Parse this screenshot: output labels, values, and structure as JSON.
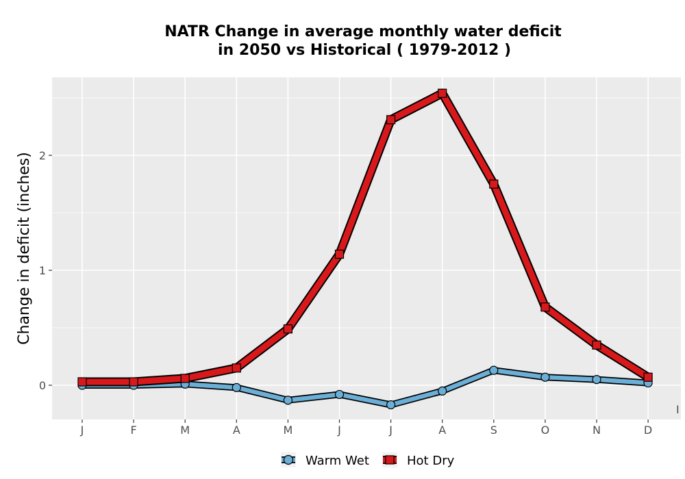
{
  "chart_data": {
    "type": "line",
    "title": "NATR  Change in average monthly water deficit",
    "subtitle": "in 2050 vs Historical ( 1979-2012 )",
    "xlabel": "",
    "ylabel": "Change in deficit (inches)",
    "categories": [
      "J",
      "F",
      "M",
      "A",
      "M",
      "J",
      "J",
      "A",
      "S",
      "O",
      "N",
      "D"
    ],
    "yticks": [
      0,
      1,
      2
    ],
    "ylim": [
      -0.3,
      2.65
    ],
    "grid": true,
    "legend_position": "bottom",
    "stray_label": "I",
    "series": [
      {
        "name": "Warm Wet",
        "marker": "circle",
        "fill_color": "#6baed6",
        "values": [
          0.0,
          0.0,
          0.01,
          -0.02,
          -0.13,
          -0.08,
          -0.17,
          -0.05,
          0.13,
          0.07,
          0.05,
          0.02
        ]
      },
      {
        "name": "Hot Dry",
        "marker": "square",
        "fill_color": "#d7191c",
        "values": [
          0.03,
          0.03,
          0.06,
          0.15,
          0.49,
          1.14,
          2.31,
          2.54,
          1.75,
          0.68,
          0.35,
          0.07
        ]
      }
    ],
    "colors": {
      "panel_bg": "#ebebeb",
      "grid": "#ffffff",
      "outline": "#000000"
    }
  }
}
